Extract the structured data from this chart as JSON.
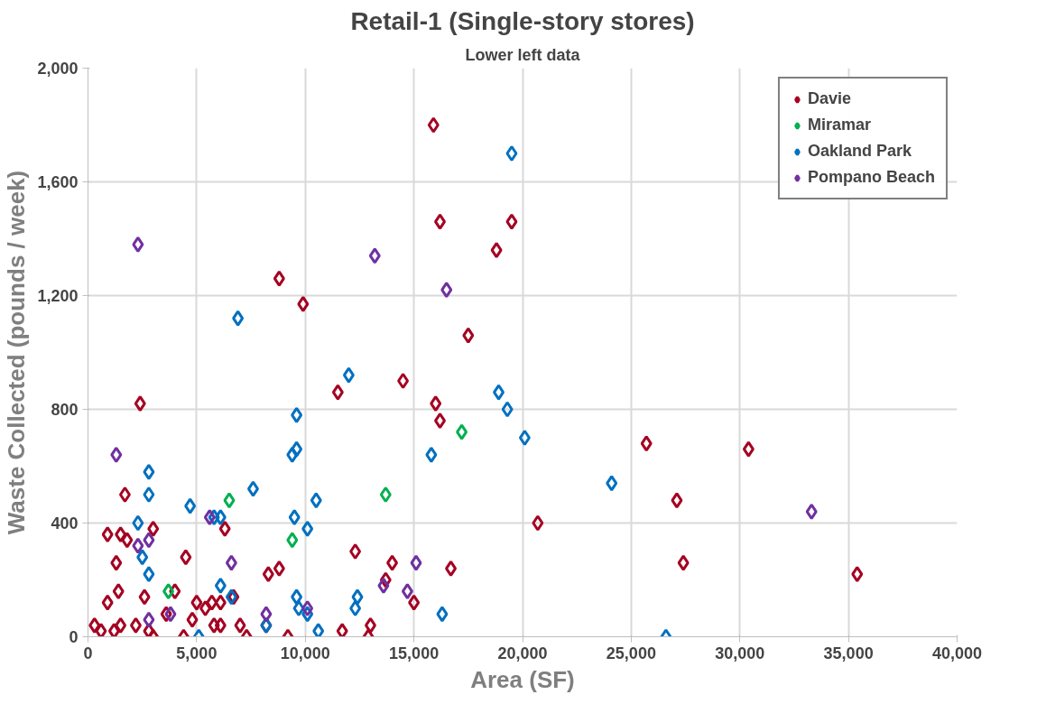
{
  "chart_data": {
    "type": "scatter",
    "title": "Retail-1 (Single-story stores)",
    "subtitle": "Lower left data",
    "xlabel": "Area (SF)",
    "ylabel": "Waste Collected (pounds / week)",
    "xlim": [
      0,
      40000
    ],
    "xticks": [
      {
        "value": 0,
        "label": "0"
      },
      {
        "value": 5000,
        "label": "5,000"
      },
      {
        "value": 10000,
        "label": "10,000"
      },
      {
        "value": 15000,
        "label": "15,000"
      },
      {
        "value": 20000,
        "label": "20,000"
      },
      {
        "value": 25000,
        "label": "25,000"
      },
      {
        "value": 30000,
        "label": "30,000"
      },
      {
        "value": 35000,
        "label": "35,000"
      },
      {
        "value": 40000,
        "label": "40,000"
      }
    ],
    "ylim": [
      0,
      2000
    ],
    "yticks": [
      {
        "value": 0,
        "label": "0"
      },
      {
        "value": 400,
        "label": "400"
      },
      {
        "value": 800,
        "label": "800"
      },
      {
        "value": 1200,
        "label": "1,200"
      },
      {
        "value": 1600,
        "label": "1,600"
      },
      {
        "value": 2000,
        "label": "2,000"
      }
    ],
    "grid": true,
    "legend": "top right",
    "marker": "diamond",
    "series": [
      {
        "name": "Davie",
        "color": "#a50021",
        "x": [
          15900,
          16200,
          19500,
          18800,
          8800,
          9900,
          17500,
          11500,
          14500,
          2400,
          16000,
          16200,
          25700,
          30400,
          20700,
          27100,
          27400,
          35400,
          1700,
          900,
          1500,
          1800,
          3000,
          6300,
          4500,
          1300,
          8800,
          8300,
          12300,
          14000,
          16700,
          13700,
          15000,
          1400,
          2600,
          4000,
          5000,
          5400,
          5700,
          6100,
          6700,
          900,
          300,
          600,
          1200,
          1500,
          2200,
          2800,
          3000,
          3600,
          4800,
          5800,
          6100,
          7000,
          7300,
          4400,
          9200,
          11700,
          13000,
          12900,
          8200
        ],
        "values": [
          1800,
          1460,
          1460,
          1360,
          1260,
          1170,
          1060,
          860,
          900,
          820,
          820,
          760,
          680,
          660,
          400,
          480,
          260,
          220,
          500,
          360,
          360,
          340,
          380,
          380,
          280,
          260,
          240,
          220,
          300,
          260,
          240,
          200,
          120,
          160,
          140,
          160,
          120,
          100,
          120,
          120,
          140,
          120,
          40,
          20,
          20,
          40,
          40,
          20,
          0,
          80,
          60,
          40,
          40,
          40,
          0,
          0,
          0,
          20,
          40,
          0,
          40
        ]
      },
      {
        "name": "Miramar",
        "color": "#00b050",
        "x": [
          17200,
          13700,
          6500,
          9400,
          3700
        ],
        "values": [
          720,
          500,
          480,
          340,
          160
        ]
      },
      {
        "name": "Oakland Park",
        "color": "#0070c0",
        "x": [
          19500,
          6900,
          12000,
          18900,
          19300,
          9600,
          20100,
          15800,
          9600,
          9400,
          24100,
          2800,
          2800,
          4700,
          7600,
          10500,
          2300,
          9500,
          10100,
          5800,
          6100,
          2500,
          2800,
          6100,
          12400,
          9600,
          6600,
          12300,
          9700,
          10100,
          16300,
          10600,
          8200,
          5100,
          26600
        ],
        "values": [
          1700,
          1120,
          920,
          860,
          800,
          780,
          700,
          640,
          660,
          640,
          540,
          580,
          500,
          460,
          520,
          480,
          400,
          420,
          380,
          420,
          420,
          280,
          220,
          180,
          140,
          140,
          140,
          100,
          100,
          80,
          80,
          20,
          40,
          0,
          0
        ]
      },
      {
        "name": "Pompano Beach",
        "color": "#7030a0",
        "x": [
          2300,
          13200,
          16500,
          1300,
          2300,
          2800,
          5600,
          6600,
          15100,
          13600,
          14700,
          10100,
          8200,
          3800,
          2800,
          33300
        ],
        "values": [
          1380,
          1340,
          1220,
          640,
          320,
          340,
          420,
          260,
          260,
          180,
          160,
          100,
          80,
          80,
          60,
          440
        ]
      }
    ]
  }
}
